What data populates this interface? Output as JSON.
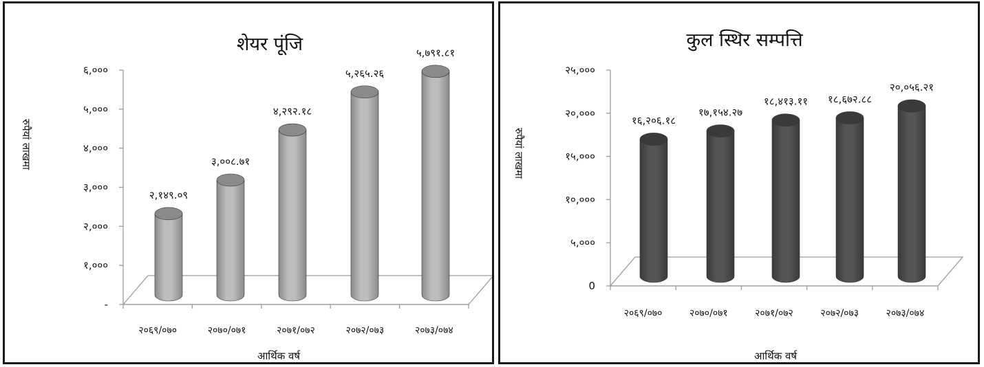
{
  "chart_data": [
    {
      "type": "bar",
      "title": "शेयर पूंजि",
      "xlabel": "आर्थिक वर्ष",
      "ylabel": "रुपैयां लाखमा",
      "categories": [
        "२०६९/०७०",
        "२०७०/०७१",
        "२०७१/०७२",
        "२०७२/०७३",
        "२०७३/०७४"
      ],
      "values": [
        2149.09,
        3008.71,
        4292.18,
        5265.26,
        5791.81
      ],
      "value_labels": [
        "२,१४९.०९",
        "३,००८.७१",
        "४,२९२.१८",
        "५,२६५.२६",
        "५,७९१.८१"
      ],
      "ylim": [
        0,
        6000
      ],
      "yticks": [
        0,
        1000,
        2000,
        3000,
        4000,
        5000,
        6000
      ],
      "ytick_labels": [
        "-",
        "१,०००",
        "२,०००",
        "३,०००",
        "४,०००",
        "५,०००",
        "६,०००"
      ],
      "bar_color": "#bdbdbd",
      "bar_dark": "#8a8a8a",
      "grid": false,
      "legend": "none"
    },
    {
      "type": "bar",
      "title": "कुल स्थिर सम्पत्ति",
      "xlabel": "आर्थिक वर्ष",
      "ylabel": "रुपैयां लाखमा",
      "categories": [
        "२०६९/०७०",
        "२०७०/०७१",
        "२०७१/०७२",
        "२०७२/०७३",
        "२०७३/०७४"
      ],
      "values": [
        16206.18,
        17154.27,
        18413.11,
        18672.88,
        20056.21
      ],
      "value_labels": [
        "१६,२०६.१८",
        "१७,१५४.२७",
        "१८,४१३.११",
        "१८,६७२.८८",
        "२०,०५६.२१"
      ],
      "ylim": [
        0,
        25000
      ],
      "yticks": [
        0,
        5000,
        10000,
        15000,
        20000,
        25000
      ],
      "ytick_labels": [
        "0",
        "५,०००",
        "१०,०००",
        "१५,०००",
        "२०,०००",
        "२५,०००"
      ],
      "bar_color": "#555555",
      "bar_dark": "#3a3a3a",
      "grid": false,
      "legend": "none"
    }
  ]
}
